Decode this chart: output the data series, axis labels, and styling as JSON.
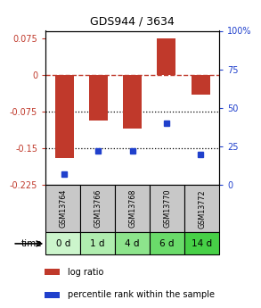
{
  "title": "GDS944 / 3634",
  "samples": [
    "GSM13764",
    "GSM13766",
    "GSM13768",
    "GSM13770",
    "GSM13772"
  ],
  "time_labels": [
    "0 d",
    "1 d",
    "4 d",
    "6 d",
    "14 d"
  ],
  "log_ratios": [
    -0.17,
    -0.093,
    -0.11,
    0.075,
    -0.04
  ],
  "percentile_ranks": [
    7,
    22,
    22,
    40,
    20
  ],
  "bar_color": "#c0392b",
  "dot_color": "#2040cc",
  "ylim_left": [
    -0.225,
    0.09
  ],
  "ylim_right": [
    0,
    100
  ],
  "yticks_left": [
    0.075,
    0,
    -0.075,
    -0.15,
    -0.225
  ],
  "yticks_right": [
    100,
    75,
    50,
    25,
    0
  ],
  "dotted_lines": [
    -0.075,
    -0.15
  ],
  "sample_bg_color": "#c8c8c8",
  "time_bg_colors": [
    "#ccf5cc",
    "#b0edaf",
    "#8de48c",
    "#6adb6a",
    "#47d047"
  ],
  "bar_width": 0.55,
  "background_color": "#ffffff"
}
